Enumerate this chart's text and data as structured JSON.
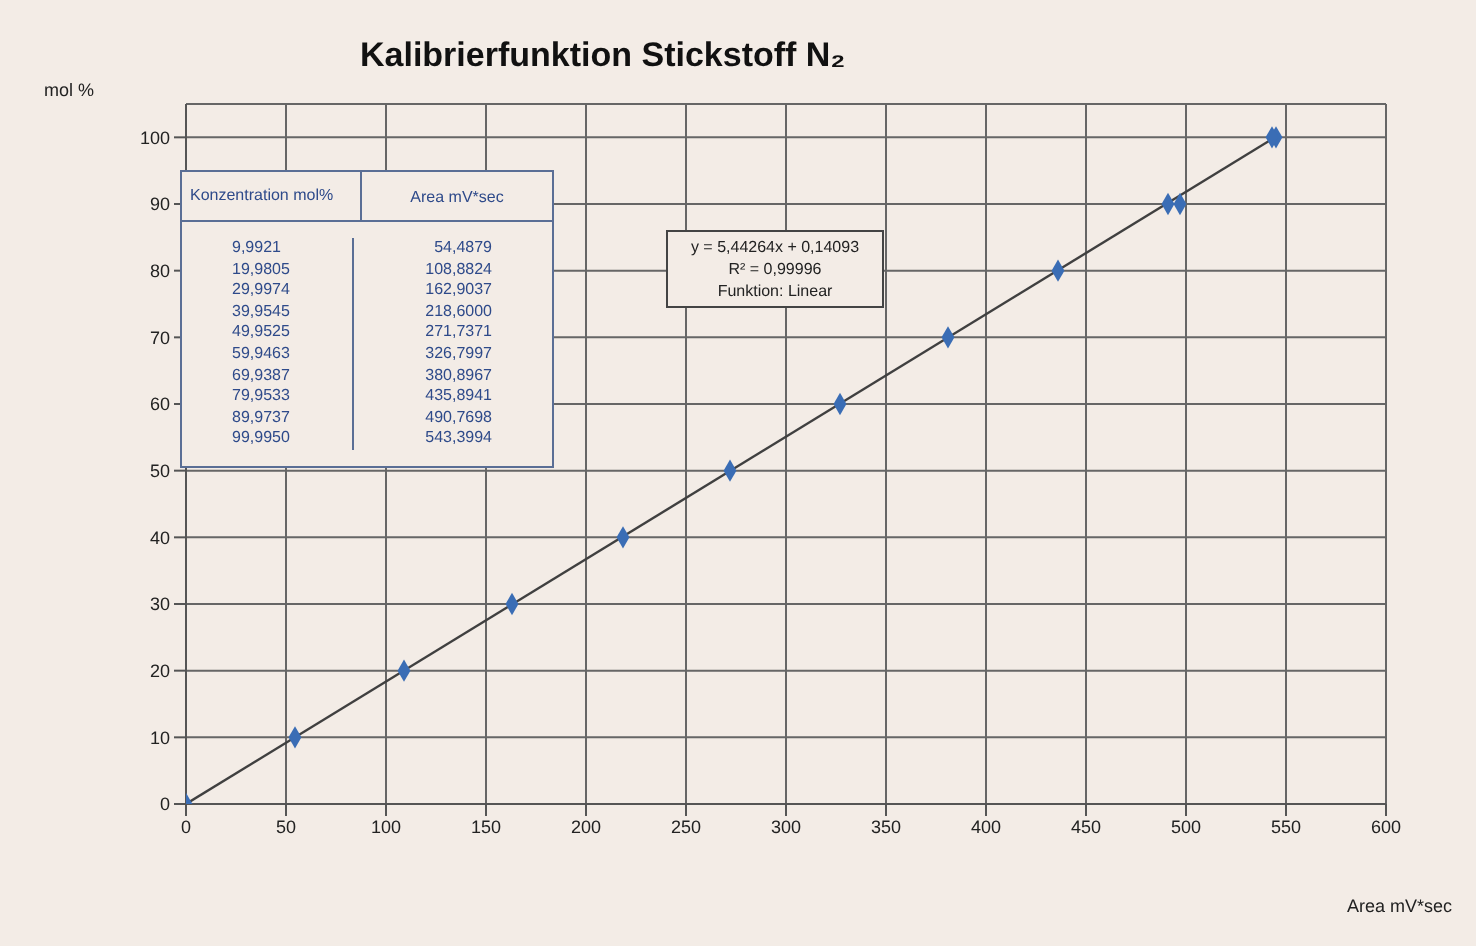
{
  "chart_data": {
    "type": "scatter",
    "title": "Kalibrierfunktion Stickstoff N₂",
    "xlabel": "Area mV*sec",
    "ylabel": "mol %",
    "annotations": [
      "Konzentration mol%",
      "Area mV*sec",
      "9,9921",
      "54,4879",
      "19,9805",
      "108,8824",
      "29,9974",
      "162,9037",
      "39,9545",
      "218,6000",
      "49,9525",
      "271,7371",
      "59,9463",
      "326,7997",
      "69,9387",
      "380,8967",
      "79,9533",
      "435,8941",
      "89,9737",
      "490,7698",
      "99,9950",
      "543,3994",
      "y = 5,44264x + 0,14093",
      "R² = 0,99996",
      "Funktion: Linear"
    ],
    "series": [
      {
        "color": "#3a6db5",
        "x": [
          54.5,
          109,
          163,
          218.5,
          272,
          327,
          381,
          436,
          491,
          543
        ],
        "values": [
          10,
          20,
          30,
          40,
          50,
          60,
          70,
          80,
          90,
          100
        ]
      },
      {
        "color": "#3a6db5",
        "x": [
          0,
          497,
          545
        ],
        "values": [
          0,
          90,
          100
        ]
      },
      {
        "type": "line",
        "color": "#404040",
        "marker": "none",
        "x": [
          0,
          544.5
        ],
        "values": [
          0,
          100
        ]
      }
    ],
    "marker": "diamond",
    "line_style": "solid",
    "xlim": [
      0,
      600
    ],
    "xticks": [
      0,
      50,
      100,
      150,
      200,
      250,
      300,
      350,
      400,
      450,
      500,
      550,
      600
    ],
    "ylim": [
      0,
      105
    ],
    "yticks": [
      0,
      10,
      20,
      30,
      40,
      50,
      60,
      70,
      80,
      90,
      100
    ],
    "grid": true
  }
}
